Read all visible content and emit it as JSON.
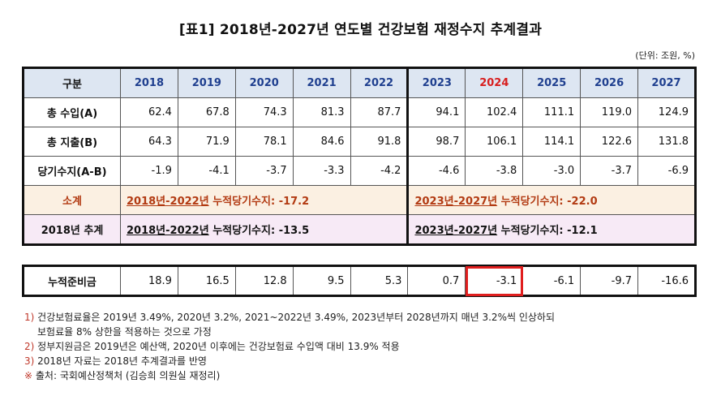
{
  "title": "[표1] 2018년-2027년 연도별 건강보험 재정수지 추계결과",
  "unit": "(단위: 조원, %)",
  "header": {
    "label": "구분",
    "years": [
      "2018",
      "2019",
      "2020",
      "2021",
      "2022",
      "2023",
      "2024",
      "2025",
      "2026",
      "2027"
    ]
  },
  "rows": [
    {
      "label": "총 수입(A)",
      "values": [
        "62.4",
        "67.8",
        "74.3",
        "81.3",
        "87.7",
        "94.1",
        "102.4",
        "111.1",
        "119.0",
        "124.9"
      ]
    },
    {
      "label": "총 지출(B)",
      "values": [
        "64.3",
        "71.9",
        "78.1",
        "84.6",
        "91.8",
        "98.7",
        "106.1",
        "114.1",
        "122.6",
        "131.8"
      ]
    },
    {
      "label": "당기수지(A-B)",
      "values": [
        "-1.9",
        "-4.1",
        "-3.7",
        "-3.3",
        "-4.2",
        "-4.6",
        "-3.8",
        "-3.0",
        "-3.7",
        "-6.9"
      ]
    }
  ],
  "subtotal": {
    "label": "소계",
    "left_period": "2018년-2022년",
    "left_text": " 누적당기수지: -17.2",
    "right_period": "2023년-2027년",
    "right_text": " 누적당기수지: -22.0"
  },
  "projection": {
    "label": "2018년 추계",
    "left_period": "2018년-2022년",
    "left_text": " 누적당기수지: -13.5",
    "right_period": "2023년-2027년",
    "right_text": " 누적당기수지: -12.1"
  },
  "reserve": {
    "label": "누적준비금",
    "values": [
      "18.9",
      "16.5",
      "12.8",
      "9.5",
      "5.3",
      "0.7",
      "-3.1",
      "-6.1",
      "-9.7",
      "-16.6"
    ]
  },
  "notes": [
    {
      "mark": "1)",
      "text": "건강보험료율은 2019년 3.49%, 2020년 3.2%, 2021~2022년 3.49%, 2023년부터 2028년까지 매년 3.2%씩 인상하되",
      "cont": "보험료율 8% 상한을 적용하는 것으로 가정"
    },
    {
      "mark": "2)",
      "text": "정부지원금은 2019년은 예산액, 2020년 이후에는 건강보험료 수입액 대비 13.9% 적용"
    },
    {
      "mark": "3)",
      "text": "2018년 자료는 2018년 추계결과를 반영"
    },
    {
      "mark": "※",
      "text": "출처: 국회예산정책처 (김승희 의원실 재정리)"
    }
  ]
}
